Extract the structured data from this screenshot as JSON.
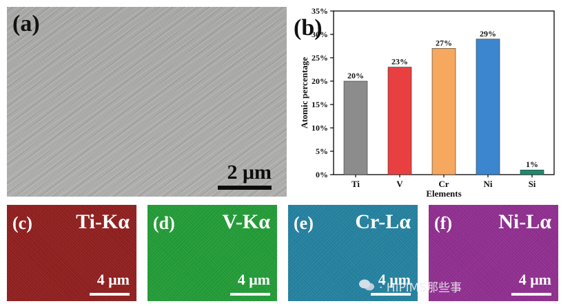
{
  "panel_a": {
    "label": "(a)",
    "scale": "2 μm"
  },
  "panel_b": {
    "label": "(b)"
  },
  "chart_data": {
    "type": "bar",
    "categories": [
      "Ti",
      "V",
      "Cr",
      "Ni",
      "Si"
    ],
    "values": [
      20,
      23,
      27,
      29,
      1
    ],
    "data_labels": [
      "20%",
      "23%",
      "27%",
      "29%",
      "1%"
    ],
    "colors": [
      "#8c8c8c",
      "#e84040",
      "#f6a85e",
      "#3b86cf",
      "#1f8a6e"
    ],
    "xlabel": "Elements",
    "ylabel": "Atomic percentage",
    "ylim": [
      0,
      35
    ],
    "yticks": [
      "0%",
      "5%",
      "10%",
      "15%",
      "20%",
      "25%",
      "30%",
      "35%"
    ],
    "ytick_values": [
      0,
      5,
      10,
      15,
      20,
      25,
      30,
      35
    ],
    "grid": false
  },
  "maps": [
    {
      "label": "(c)",
      "element": "Ti-Kα",
      "scale": "4 μm",
      "color": "#8e1a1a"
    },
    {
      "label": "(d)",
      "element": "V-Kα",
      "scale": "4 μm",
      "color": "#1e9a33"
    },
    {
      "label": "(e)",
      "element": "Cr-Lα",
      "scale": "4 μm",
      "color": "#1f7f9e"
    },
    {
      "label": "(f)",
      "element": "Ni-Lα",
      "scale": "4 μm",
      "color": "#8e2a8e"
    }
  ],
  "watermark": "· HiPIMS那些事"
}
